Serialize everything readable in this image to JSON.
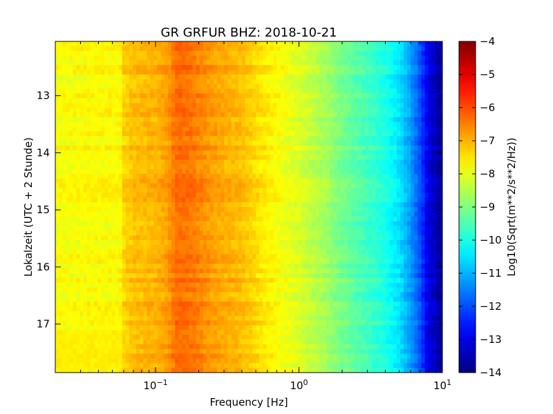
{
  "chart_data": {
    "type": "heatmap",
    "title": "GR GRFUR BHZ: 2018-10-21",
    "xlabel": "Frequency [Hz]",
    "ylabel": "Lokalzeit (UTC + 2 Stunde)",
    "x_scale": "log",
    "xlim": [
      0.02,
      10
    ],
    "ylim": [
      17.85,
      12.05
    ],
    "y_inverted": true,
    "x_ticks": [
      {
        "value": 0.1,
        "base": "10",
        "exp": "−1"
      },
      {
        "value": 1,
        "base": "10",
        "exp": "0"
      },
      {
        "value": 10,
        "base": "10",
        "exp": "1"
      }
    ],
    "y_ticks": [
      {
        "value": 13,
        "label": "13"
      },
      {
        "value": 14,
        "label": "14"
      },
      {
        "value": 15,
        "label": "15"
      },
      {
        "value": 16,
        "label": "16"
      },
      {
        "value": 17,
        "label": "17"
      }
    ],
    "colorbar": {
      "label": "Log10(Sqrt(m**2/s**2/Hz))",
      "colormap": "jet",
      "range": [
        -14,
        -4
      ],
      "ticks": [
        {
          "value": -4,
          "label": "−4"
        },
        {
          "value": -5,
          "label": "−5"
        },
        {
          "value": -6,
          "label": "−6"
        },
        {
          "value": -7,
          "label": "−7"
        },
        {
          "value": -8,
          "label": "−8"
        },
        {
          "value": -9,
          "label": "−9"
        },
        {
          "value": -10,
          "label": "−10"
        },
        {
          "value": -11,
          "label": "−11"
        },
        {
          "value": -12,
          "label": "−12"
        },
        {
          "value": -13,
          "label": "−13"
        },
        {
          "value": -14,
          "label": "−14"
        }
      ]
    },
    "spectrum_profile": [
      {
        "freq": 0.02,
        "level": -7.8
      },
      {
        "freq": 0.058,
        "level": -7.7
      },
      {
        "freq": 0.06,
        "level": -7.3
      },
      {
        "freq": 0.075,
        "level": -7.1
      },
      {
        "freq": 0.1,
        "level": -7.0
      },
      {
        "freq": 0.12,
        "level": -6.8
      },
      {
        "freq": 0.14,
        "level": -6.3
      },
      {
        "freq": 0.18,
        "level": -6.4
      },
      {
        "freq": 0.25,
        "level": -6.8
      },
      {
        "freq": 0.4,
        "level": -7.1
      },
      {
        "freq": 0.55,
        "level": -7.5
      },
      {
        "freq": 0.8,
        "level": -7.9
      },
      {
        "freq": 1.0,
        "level": -8.1
      },
      {
        "freq": 1.5,
        "level": -8.6
      },
      {
        "freq": 2.0,
        "level": -9.1
      },
      {
        "freq": 3.0,
        "level": -9.6
      },
      {
        "freq": 4.0,
        "level": -10.0
      },
      {
        "freq": 5.0,
        "level": -10.5
      },
      {
        "freq": 6.0,
        "level": -11.2
      },
      {
        "freq": 7.0,
        "level": -12.0
      },
      {
        "freq": 8.0,
        "level": -13.0
      },
      {
        "freq": 10.0,
        "level": -13.8
      }
    ],
    "note_low_freq_change": {
      "time": 17.1,
      "below_freq": 0.06,
      "level_after": -7.6
    }
  }
}
